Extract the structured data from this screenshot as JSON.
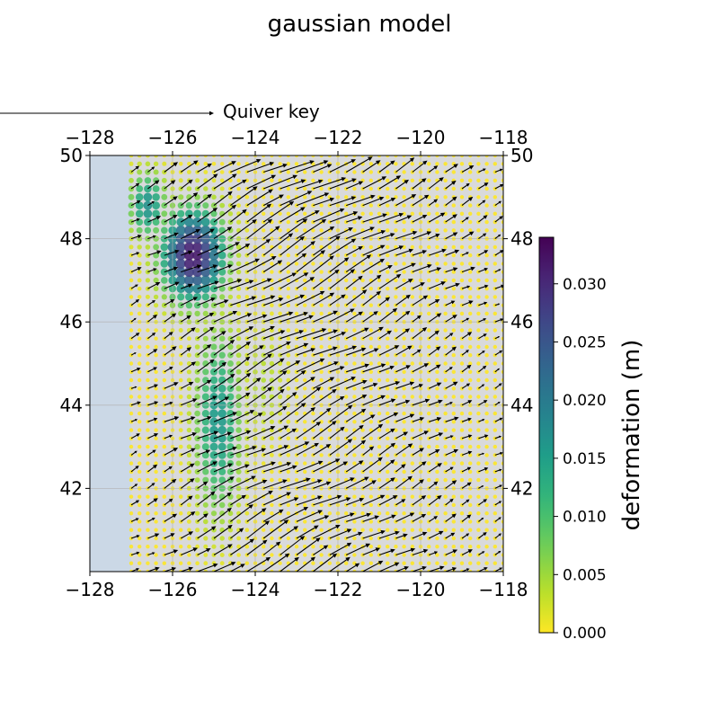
{
  "chart_data": {
    "type": "scatter",
    "title": "gaussian model",
    "x": {
      "range": [
        -128,
        -118
      ],
      "ticks": [
        -128,
        -126,
        -124,
        -122,
        -120,
        -118
      ],
      "tick_labels": [
        "−128",
        "−126",
        "−124",
        "−122",
        "−120",
        "−118"
      ]
    },
    "y": {
      "range": [
        40,
        50
      ],
      "ticks": [
        42,
        44,
        46,
        48,
        50
      ],
      "tick_labels": [
        "42",
        "44",
        "46",
        "48",
        "50"
      ]
    },
    "grid": true,
    "points": {
      "lon_range": [
        -127,
        -118
      ],
      "lat_range": [
        40,
        50
      ],
      "spacing_deg": 0.2,
      "value_field": "deformation (m)"
    },
    "vectors": {
      "lon_range": [
        -127,
        -118
      ],
      "lat_range": [
        40,
        50
      ],
      "spacing_deg": 0.4,
      "direction": "toward north-east"
    },
    "quiver_key": {
      "label": "Quiver key"
    },
    "colorbar": {
      "label": "deformation (m)",
      "colormap": "viridis_r",
      "range": [
        0,
        0.034
      ],
      "ticks": [
        0.0,
        0.005,
        0.01,
        0.015,
        0.02,
        0.025,
        0.03
      ],
      "tick_labels": [
        "0.000",
        "0.005",
        "0.010",
        "0.015",
        "0.020",
        "0.025",
        "0.030"
      ]
    },
    "colors": {
      "ocean": "#cbd8e6",
      "land": "#d9dadb",
      "grid": "#b0b0b0"
    }
  }
}
